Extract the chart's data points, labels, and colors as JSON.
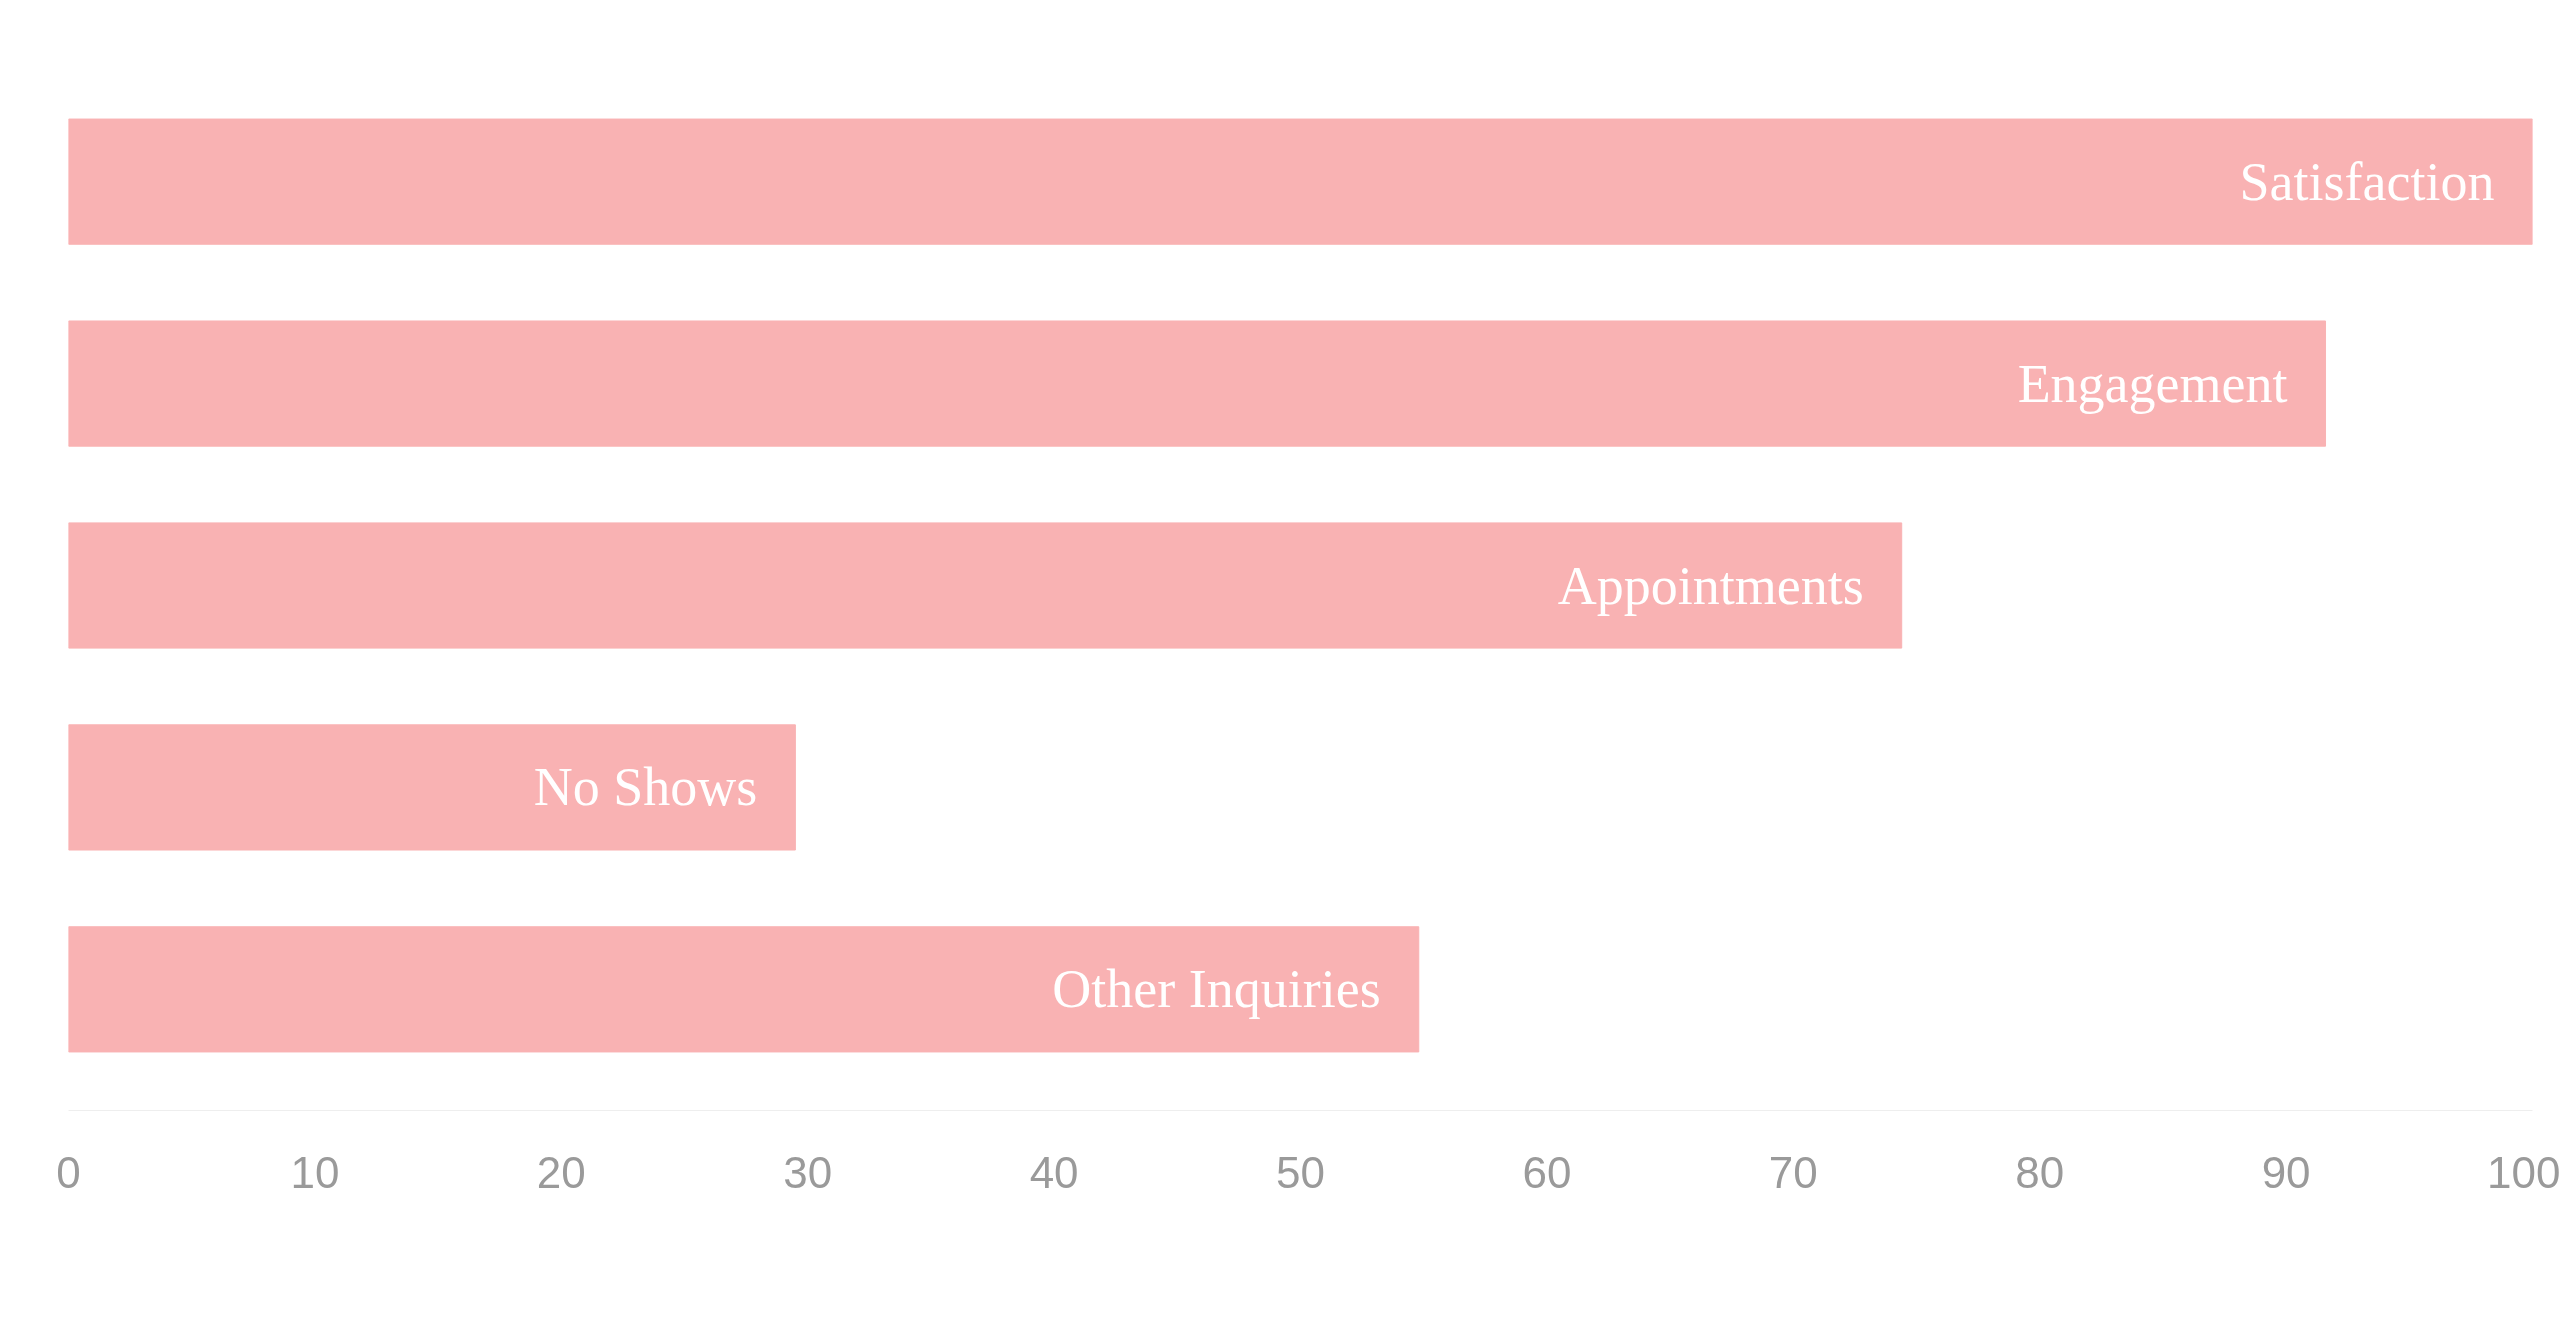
{
  "chart_data": {
    "type": "bar",
    "orientation": "horizontal",
    "categories": [
      "Satisfaction",
      "Engagement",
      "Appointments",
      "No Shows",
      "Other Inquiries"
    ],
    "values": [
      100,
      91.6,
      74.4,
      29.5,
      54.8
    ],
    "color": "#f9b2b3",
    "xlim": [
      0,
      100
    ],
    "xticks": [
      0,
      10,
      20,
      30,
      40,
      50,
      60,
      70,
      80,
      90,
      100
    ],
    "grid": false
  }
}
